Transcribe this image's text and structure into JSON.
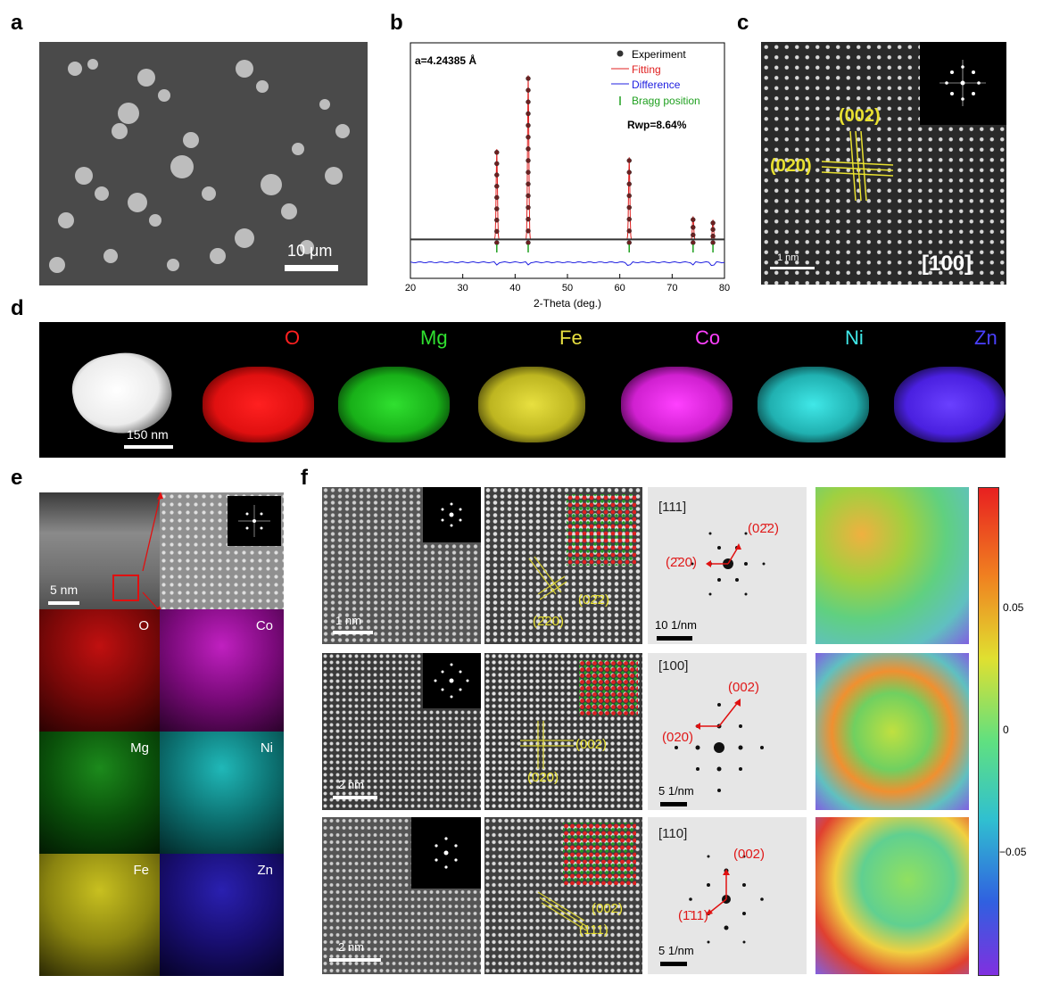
{
  "panels": {
    "a": "a",
    "b": "b",
    "c": "c",
    "d": "d",
    "e": "e",
    "f": "f"
  },
  "a": {
    "scale": "10 μm"
  },
  "b": {
    "lattice": "a=4.24385 Å",
    "rwp": "Rwp=8.64%",
    "legend": [
      "Experiment",
      "Fitting",
      "Difference",
      "Bragg position"
    ],
    "xlabel": "2-Theta (deg.)",
    "xticks": [
      "20",
      "30",
      "40",
      "50",
      "60",
      "70",
      "80"
    ]
  },
  "c": {
    "plane1": "(002)",
    "plane2": "(020)",
    "zone": "[100]",
    "scale": "1 nm"
  },
  "d": {
    "scale": "150 nm",
    "elements": [
      "O",
      "Mg",
      "Fe",
      "Co",
      "Ni",
      "Zn"
    ]
  },
  "e": {
    "scale": "5 nm",
    "elements": [
      "O",
      "Co",
      "Mg",
      "Ni",
      "Fe",
      "Zn"
    ]
  },
  "f": {
    "rows": [
      {
        "scale": "1 nm",
        "zone": "[111]",
        "spot1": "(02̄2)",
        "spot2": "(2̄20)",
        "fscale": "10 1/nm",
        "p1": "(02̄2)",
        "p2": "(2̄20)"
      },
      {
        "scale": "2 nm",
        "zone": "[100]",
        "spot1": "(002)",
        "spot2": "(020)",
        "fscale": "5 1/nm",
        "p1": "(002)",
        "p2": "(020)"
      },
      {
        "scale": "2 nm",
        "zone": "[110]",
        "spot1": "(002)",
        "spot2": "(1̄11)",
        "fscale": "5 1/nm",
        "p1": "(002)",
        "p2": "(111)"
      }
    ],
    "colorbar_ticks": [
      "0.05",
      "0",
      "−0.05"
    ]
  },
  "chart_data": {
    "type": "line",
    "title": "",
    "xlabel": "2-Theta (deg.)",
    "ylabel": "",
    "xlim": [
      20,
      80
    ],
    "series": [
      {
        "name": "Experiment",
        "x": [
          20,
          36.5,
          42.5,
          61.8,
          74.0,
          77.8,
          80
        ],
        "y": [
          0.05,
          0.55,
          1.0,
          0.5,
          0.14,
          0.12,
          0.05
        ]
      },
      {
        "name": "Fitting",
        "x": [
          20,
          36.5,
          42.5,
          61.8,
          74.0,
          77.8,
          80
        ],
        "y": [
          0.05,
          0.55,
          1.0,
          0.5,
          0.14,
          0.12,
          0.05
        ]
      },
      {
        "name": "Difference",
        "x": [
          20,
          80
        ],
        "y": [
          0,
          0
        ]
      },
      {
        "name": "Bragg position",
        "x": [
          36.5,
          42.5,
          61.8,
          74.0,
          77.8
        ]
      }
    ]
  }
}
